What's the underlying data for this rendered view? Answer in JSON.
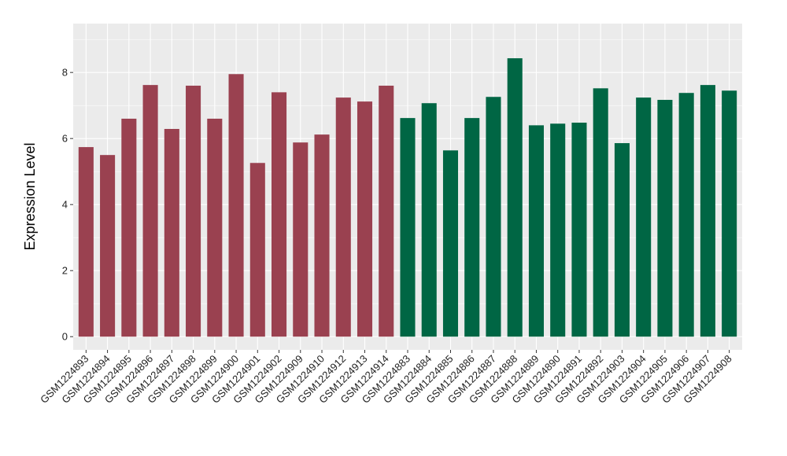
{
  "chart_data": {
    "type": "bar",
    "title": "",
    "xlabel": "",
    "ylabel": "Expression Level",
    "ylim": [
      -0.4,
      9.48
    ],
    "yticks": [
      0,
      2,
      4,
      6,
      8
    ],
    "grid": true,
    "categories": [
      "GSM1224893",
      "GSM1224894",
      "GSM1224895",
      "GSM1224896",
      "GSM1224897",
      "GSM1224898",
      "GSM1224899",
      "GSM1224900",
      "GSM1224901",
      "GSM1224902",
      "GSM1224909",
      "GSM1224910",
      "GSM1224912",
      "GSM1224913",
      "GSM1224914",
      "GSM1224883",
      "GSM1224884",
      "GSM1224885",
      "GSM1224886",
      "GSM1224887",
      "GSM1224888",
      "GSM1224889",
      "GSM1224890",
      "GSM1224891",
      "GSM1224892",
      "GSM1224903",
      "GSM1224904",
      "GSM1224905",
      "GSM1224906",
      "GSM1224907",
      "GSM1224908"
    ],
    "values": [
      5.74,
      5.5,
      6.6,
      7.62,
      6.29,
      7.6,
      6.6,
      7.95,
      5.26,
      7.4,
      5.88,
      6.12,
      7.24,
      7.12,
      7.6,
      6.62,
      7.07,
      5.64,
      6.62,
      7.26,
      8.43,
      6.4,
      6.45,
      6.48,
      7.52,
      5.86,
      7.24,
      7.17,
      7.38,
      7.62,
      7.45
    ],
    "groups": [
      0,
      0,
      0,
      0,
      0,
      0,
      0,
      0,
      0,
      0,
      0,
      0,
      0,
      0,
      0,
      1,
      1,
      1,
      1,
      1,
      1,
      1,
      1,
      1,
      1,
      1,
      1,
      1,
      1,
      1,
      1
    ],
    "colors": [
      "#9a4150",
      "#006644"
    ]
  }
}
